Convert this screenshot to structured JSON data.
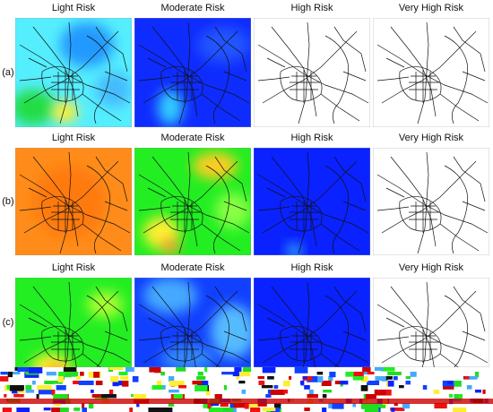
{
  "rows": [
    {
      "label": "(a)",
      "panels": [
        {
          "title": "Light Risk"
        },
        {
          "title": "Moderate Risk"
        },
        {
          "title": "High Risk"
        },
        {
          "title": "Very High Risk"
        }
      ]
    },
    {
      "label": "(b)",
      "panels": [
        {
          "title": "Light Risk"
        },
        {
          "title": "Moderate Risk"
        },
        {
          "title": "High Risk"
        },
        {
          "title": "Very High Risk"
        }
      ]
    },
    {
      "label": "(c)",
      "panels": [
        {
          "title": "Light Risk"
        },
        {
          "title": "Moderate Risk"
        },
        {
          "title": "High Risk"
        },
        {
          "title": "Very High Risk"
        }
      ]
    }
  ]
}
